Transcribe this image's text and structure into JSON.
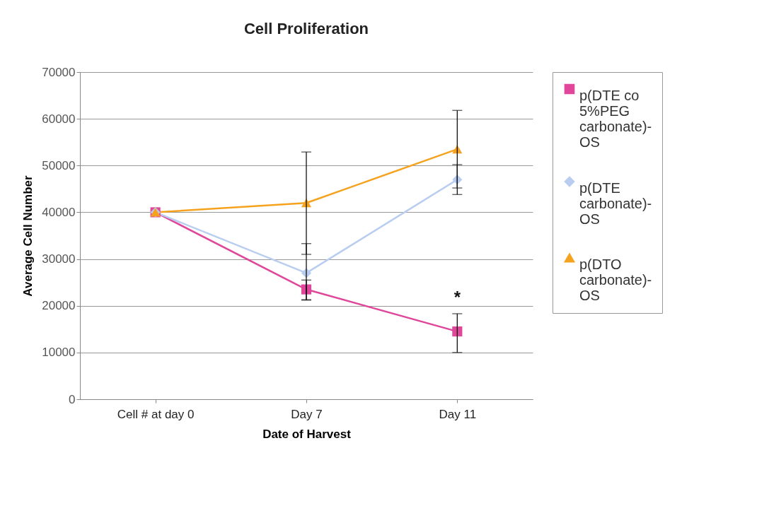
{
  "chart_data": {
    "type": "line",
    "title": "Cell Proliferation",
    "xlabel": "Date of Harvest",
    "ylabel": "Average Cell Number",
    "categories": [
      "Cell # at day 0",
      "Day 7",
      "Day 11"
    ],
    "series": [
      {
        "name": "p(DTE co 5%PEG carbonate)-OS",
        "color": "#e0479a",
        "marker": "square",
        "values": [
          40000,
          23500,
          14500
        ],
        "errors": [
          null,
          [
            21300,
            25500
          ],
          [
            10000,
            18300
          ]
        ]
      },
      {
        "name": "p(DTE carbonate)-OS",
        "color": "#b8cdf0",
        "marker": "diamond",
        "values": [
          40000,
          27000,
          47000
        ],
        "errors": [
          null,
          [
            21200,
            33300
          ],
          [
            43800,
            50200
          ]
        ]
      },
      {
        "name": "p(DTO carbonate)-OS",
        "color": "#f5a31e",
        "marker": "triangle",
        "values": [
          40000,
          42000,
          53500
        ],
        "errors": [
          null,
          [
            31000,
            52900
          ],
          [
            45200,
            61800
          ]
        ]
      }
    ],
    "ylim": [
      0,
      70000
    ],
    "yticks": [
      0,
      10000,
      20000,
      30000,
      40000,
      50000,
      60000,
      70000
    ],
    "grid": "y",
    "legend": "right",
    "annotations": [
      "*"
    ]
  }
}
